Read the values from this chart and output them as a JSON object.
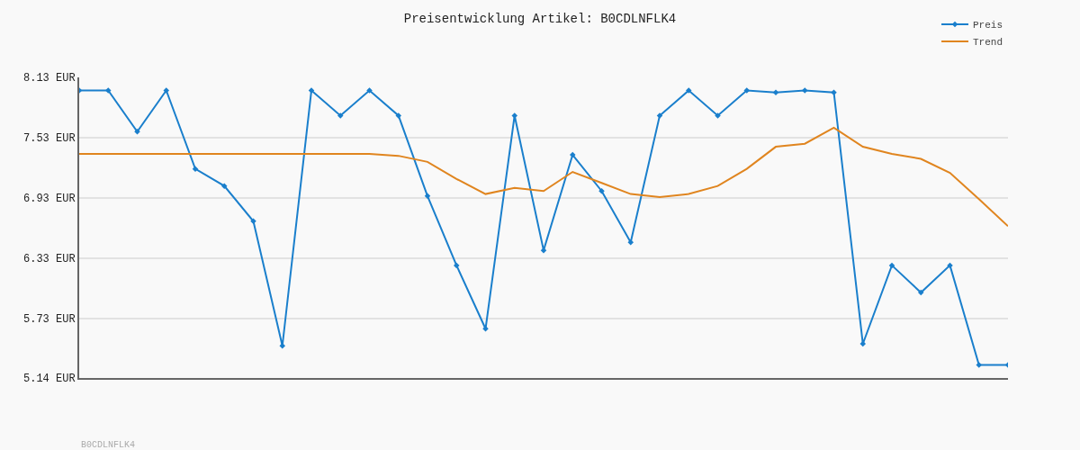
{
  "chart_data": {
    "type": "line",
    "title": "Preisentwicklung Artikel: B0CDLNFLK4",
    "categories": [
      null,
      null,
      null,
      null,
      null,
      null,
      null,
      null,
      null,
      null,
      null,
      null,
      null,
      null,
      null,
      null,
      null,
      null,
      null,
      null,
      null,
      null,
      null,
      null,
      null,
      null,
      null,
      null,
      null,
      null,
      null,
      null,
      null
    ],
    "series": [
      {
        "name": "Preis",
        "color": "#1a7fcc",
        "marker": "diamond",
        "values": [
          8.0,
          8.0,
          7.59,
          8.0,
          7.22,
          7.05,
          6.7,
          5.46,
          8.0,
          7.75,
          8.0,
          7.75,
          6.95,
          6.26,
          5.63,
          7.75,
          6.41,
          7.36,
          7.0,
          6.49,
          7.75,
          8.0,
          7.75,
          8.0,
          7.98,
          8.0,
          7.98,
          5.48,
          6.26,
          5.99,
          6.26,
          5.27,
          5.27
        ]
      },
      {
        "name": "Trend",
        "color": "#e0851f",
        "marker": "none",
        "values": [
          7.37,
          7.37,
          7.37,
          7.37,
          7.37,
          7.37,
          7.37,
          7.37,
          7.37,
          7.37,
          7.37,
          7.35,
          7.29,
          7.12,
          6.97,
          7.03,
          7.0,
          7.19,
          7.08,
          6.97,
          6.94,
          6.97,
          7.05,
          7.22,
          7.44,
          7.47,
          7.63,
          7.44,
          7.37,
          7.32,
          7.18,
          6.92,
          6.65
        ]
      }
    ],
    "ylim": [
      5.14,
      8.13
    ],
    "yticks": [
      {
        "value": 5.14,
        "label": "5.14 EUR"
      },
      {
        "value": 5.73,
        "label": "5.73 EUR"
      },
      {
        "value": 6.33,
        "label": "6.33 EUR"
      },
      {
        "value": 6.93,
        "label": "6.93 EUR"
      },
      {
        "value": 7.53,
        "label": "7.53 EUR"
      },
      {
        "value": 8.13,
        "label": "8.13 EUR"
      }
    ],
    "grid": "y",
    "legend": "top right",
    "tick_labels": "y",
    "annotations": [
      "B0CDLNFLK4"
    ]
  }
}
